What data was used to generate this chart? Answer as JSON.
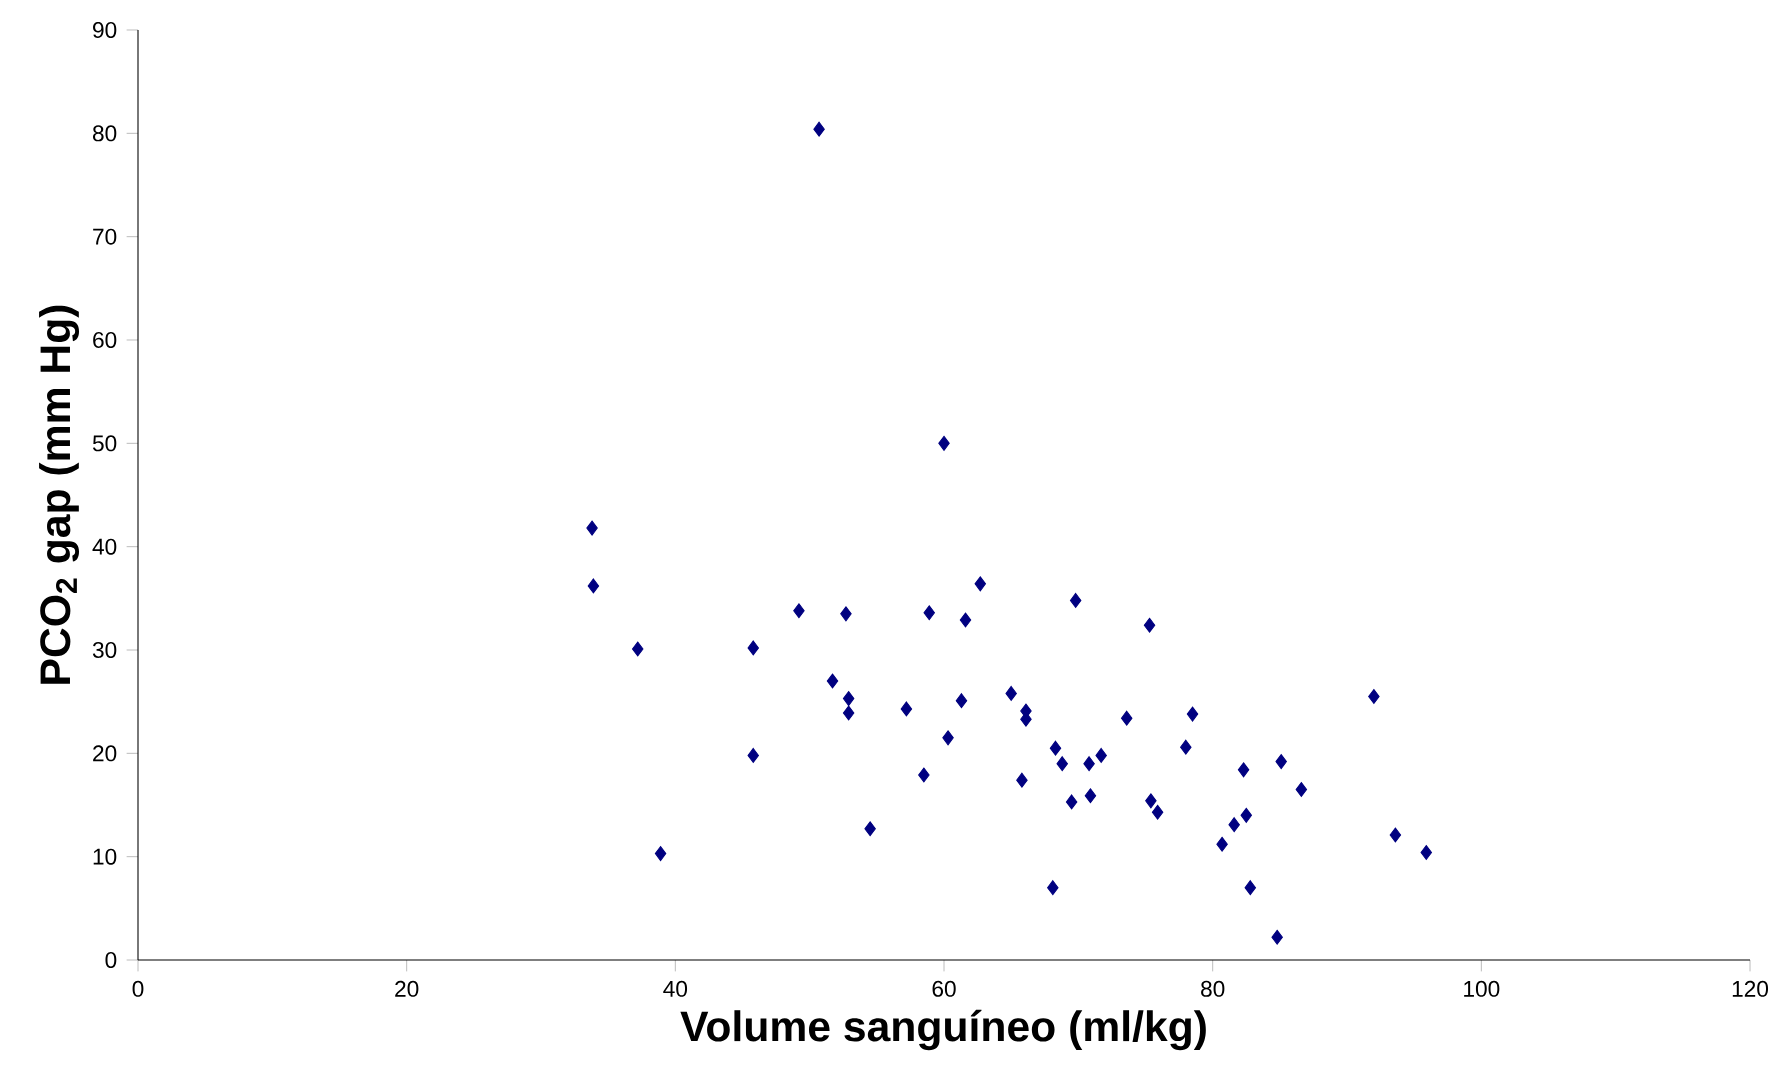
{
  "chart_data": {
    "type": "scatter",
    "xlabel": "Volume sanguíneo (ml/kg)",
    "ylabel": "PCO$_{2}$ gap (mm Hg)",
    "xlim": [
      0,
      120
    ],
    "xticks": [
      0,
      20,
      40,
      60,
      80,
      100,
      120
    ],
    "ylim": [
      0,
      90
    ],
    "yticks": [
      0,
      10,
      20,
      30,
      40,
      50,
      60,
      70,
      80,
      90
    ],
    "marker": "diamond",
    "grid": false,
    "series": [
      {
        "color": "#000080",
        "x": [
          33.8,
          33.9,
          37.2,
          38.9,
          45.8,
          45.8,
          49.2,
          50.7,
          51.7,
          52.7,
          52.9,
          52.9,
          54.5,
          57.2,
          58.5,
          58.9,
          60.0,
          60.3,
          61.3,
          61.6,
          62.7,
          65.0,
          65.8,
          66.1,
          66.1,
          68.1,
          68.3,
          68.8,
          69.5,
          69.8,
          70.8,
          70.9,
          71.7,
          73.6,
          75.3,
          75.4,
          75.9,
          78.0,
          78.5,
          80.7,
          81.6,
          82.3,
          82.5,
          82.8,
          84.8,
          85.1,
          86.6,
          92.0,
          93.6,
          95.9
        ],
        "values": [
          41.8,
          36.2,
          30.1,
          10.3,
          30.2,
          19.8,
          33.8,
          80.4,
          27.0,
          33.5,
          25.3,
          23.9,
          12.7,
          24.3,
          17.9,
          33.6,
          50.0,
          21.5,
          25.1,
          32.9,
          36.4,
          25.8,
          17.4,
          24.1,
          23.3,
          7.0,
          20.5,
          19.0,
          15.3,
          34.8,
          19.0,
          15.9,
          19.8,
          23.4,
          32.4,
          15.4,
          14.3,
          20.6,
          23.8,
          11.2,
          13.1,
          18.4,
          14.0,
          7.0,
          2.2,
          19.2,
          16.5,
          25.5,
          12.1,
          10.4
        ]
      }
    ]
  }
}
